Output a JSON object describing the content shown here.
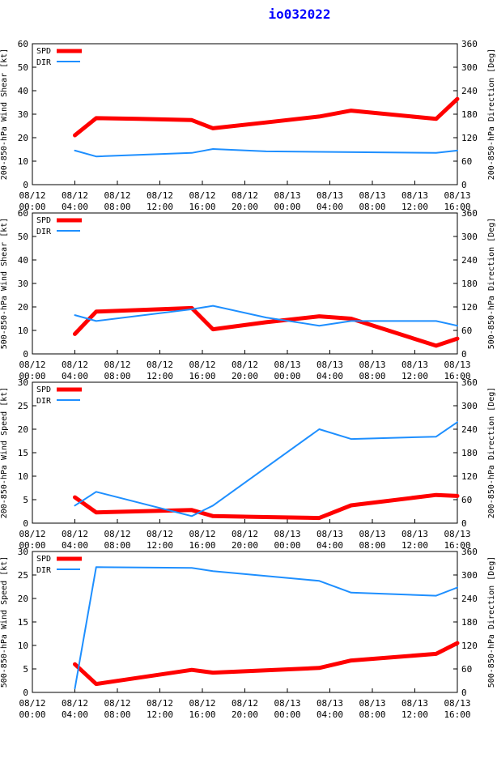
{
  "title": "io032022",
  "colors": {
    "spd": "#ff0000",
    "dir": "#1e8fff",
    "axis": "#000000",
    "title": "#0000ff"
  },
  "legend": {
    "spd": "SPD",
    "dir": "DIR"
  },
  "x_ticks": [
    [
      "08/12",
      "00:00"
    ],
    [
      "08/12",
      "04:00"
    ],
    [
      "08/12",
      "08:00"
    ],
    [
      "08/12",
      "12:00"
    ],
    [
      "08/12",
      "16:00"
    ],
    [
      "08/12",
      "20:00"
    ],
    [
      "08/13",
      "00:00"
    ],
    [
      "08/13",
      "04:00"
    ],
    [
      "08/13",
      "08:00"
    ],
    [
      "08/13",
      "12:00"
    ],
    [
      "08/13",
      "16:00"
    ]
  ],
  "chart_data": [
    {
      "type": "line",
      "ylabel_left": "200-850-hPa Wind Shear [kt]",
      "ylabel_right": "200-850-hPa Direction [Deg]",
      "ylim_left": [
        0,
        60
      ],
      "yticks_left": [
        0,
        10,
        20,
        30,
        40,
        50,
        60
      ],
      "ylim_right": [
        0,
        360
      ],
      "yticks_right": [
        0,
        60,
        120,
        180,
        240,
        300,
        360
      ],
      "xlim_hours": [
        0,
        40
      ],
      "series": [
        {
          "name": "SPD",
          "x": [
            4,
            6,
            10,
            15,
            17,
            22,
            27,
            30,
            38,
            40
          ],
          "y": [
            21,
            28.3,
            28,
            27.5,
            24,
            26.5,
            29,
            31.5,
            28,
            36.5
          ]
        },
        {
          "name": "DIR",
          "x": [
            4,
            6,
            15,
            17,
            22,
            38,
            40
          ],
          "y": [
            87,
            72,
            81,
            91,
            85,
            81,
            87
          ]
        }
      ]
    },
    {
      "type": "line",
      "ylabel_left": "500-850-hPa Wind Shear [kt]",
      "ylabel_right": "500-850-hPa Direction [Deg]",
      "ylim_left": [
        0,
        60
      ],
      "yticks_left": [
        0,
        10,
        20,
        30,
        40,
        50,
        60
      ],
      "ylim_right": [
        0,
        360
      ],
      "yticks_right": [
        0,
        60,
        120,
        180,
        240,
        300,
        360
      ],
      "xlim_hours": [
        0,
        40
      ],
      "series": [
        {
          "name": "SPD",
          "x": [
            4,
            6,
            15,
            17,
            22,
            27,
            30,
            38,
            40
          ],
          "y": [
            8.5,
            18,
            19.5,
            10.5,
            13.5,
            16,
            15,
            3.5,
            6.5
          ]
        },
        {
          "name": "DIR",
          "x": [
            4,
            6,
            15,
            17,
            22,
            27,
            30,
            38,
            40
          ],
          "y": [
            99,
            84,
            114,
            123,
            93,
            72,
            84,
            84,
            72
          ]
        }
      ]
    },
    {
      "type": "line",
      "ylabel_left": "200-850-hPa Wind Speed [kt]",
      "ylabel_right": "200-850-hPa Direction [Deg]",
      "ylim_left": [
        0,
        30
      ],
      "yticks_left": [
        0,
        5,
        10,
        15,
        20,
        25,
        30
      ],
      "ylim_right": [
        0,
        360
      ],
      "yticks_right": [
        0,
        60,
        120,
        180,
        240,
        300,
        360
      ],
      "xlim_hours": [
        0,
        40
      ],
      "series": [
        {
          "name": "SPD",
          "x": [
            4,
            6,
            15,
            17,
            22,
            27,
            30,
            38,
            40
          ],
          "y": [
            5.5,
            2.3,
            2.8,
            1.5,
            1.3,
            1.1,
            3.8,
            6,
            5.8
          ]
        },
        {
          "name": "DIR",
          "x": [
            4,
            6,
            15,
            17,
            27,
            30,
            38,
            40
          ],
          "y": [
            45,
            80,
            18,
            45,
            240,
            215,
            221,
            258
          ]
        }
      ]
    },
    {
      "type": "line",
      "ylabel_left": "500-850-hPa Wind Speed [kt]",
      "ylabel_right": "500-850-hPa Direction [Deg]",
      "ylim_left": [
        0,
        30
      ],
      "yticks_left": [
        0,
        5,
        10,
        15,
        20,
        25,
        30
      ],
      "ylim_right": [
        0,
        360
      ],
      "yticks_right": [
        0,
        60,
        120,
        180,
        240,
        300,
        360
      ],
      "xlim_hours": [
        0,
        40
      ],
      "series": [
        {
          "name": "SPD",
          "x": [
            4,
            6,
            15,
            17,
            27,
            30,
            38,
            40
          ],
          "y": [
            6,
            1.8,
            4.8,
            4.2,
            5.2,
            6.8,
            8.2,
            10.5
          ]
        },
        {
          "name": "DIR",
          "x": [
            4,
            6,
            15,
            17,
            27,
            30,
            38,
            40
          ],
          "y": [
            10,
            320,
            318,
            310,
            285,
            255,
            247,
            268
          ]
        }
      ]
    }
  ]
}
